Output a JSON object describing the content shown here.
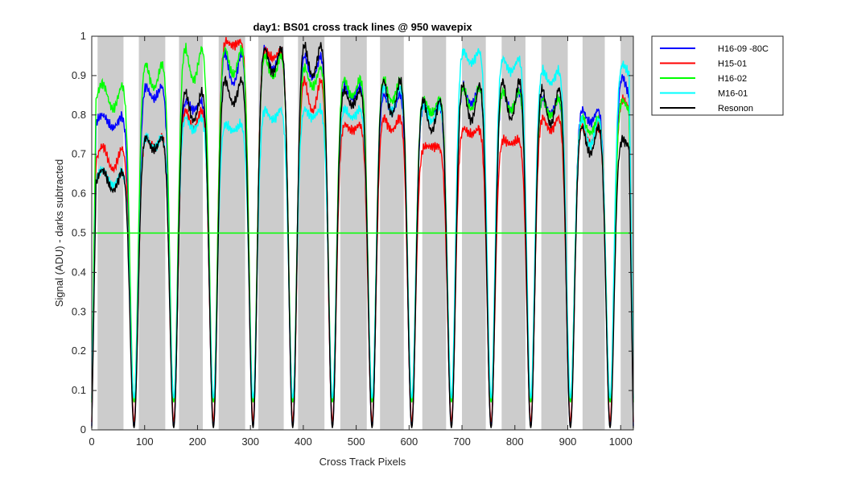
{
  "chart_data": {
    "type": "line",
    "title": "day1: BS01  cross track lines @ 950 wavepix",
    "xlabel": "Cross Track Pixels",
    "ylabel": "Signal (ADU) - darks subtracted",
    "xlim": [
      0,
      1024
    ],
    "ylim": [
      0,
      1
    ],
    "xticks": [
      0,
      100,
      200,
      300,
      400,
      500,
      600,
      700,
      800,
      900,
      1000
    ],
    "yticks": [
      0,
      0.1,
      0.2,
      0.3,
      0.4,
      0.5,
      0.6,
      0.7,
      0.8,
      0.9,
      1
    ],
    "xtick_labels": [
      "0",
      "100",
      "200",
      "300",
      "400",
      "500",
      "600",
      "700",
      "800",
      "900",
      "1000"
    ],
    "ytick_labels": [
      "0",
      "0.1",
      "0.2",
      "0.3",
      "0.4",
      "0.5",
      "0.6",
      "0.7",
      "0.8",
      "0.9",
      "1"
    ],
    "legend_position": "outside-top-right",
    "grid": false,
    "shaded_bands": [
      [
        11,
        60
      ],
      [
        89,
        139
      ],
      [
        165,
        210
      ],
      [
        240,
        290
      ],
      [
        315,
        363
      ],
      [
        390,
        440
      ],
      [
        470,
        520
      ],
      [
        545,
        590
      ],
      [
        625,
        670
      ],
      [
        700,
        745
      ],
      [
        775,
        820
      ],
      [
        850,
        900
      ],
      [
        928,
        970
      ],
      [
        1000,
        1024
      ]
    ],
    "dip_centers": [
      80,
      155,
      230,
      305,
      380,
      455,
      530,
      605,
      680,
      755,
      830,
      905,
      980
    ],
    "reference_line": {
      "y": 0.5,
      "color": "#00ff00"
    },
    "series": [
      {
        "name": "H16-09 -80C",
        "color": "#0000ff",
        "peaks": [
          0.8,
          0.88,
          0.84,
          0.97,
          0.98,
          0.96,
          0.88,
          0.86,
          0.83,
          0.88,
          0.87,
          0.85,
          0.82,
          0.9
        ],
        "valleys": [
          0.75,
          0.82,
          0.8,
          0.83,
          0.88,
          0.86,
          0.82,
          0.78,
          0.79,
          0.8,
          0.78,
          0.78,
          0.76,
          0.8
        ],
        "floor": 0.01
      },
      {
        "name": "H15-01",
        "color": "#ff0000",
        "peaks": [
          0.72,
          0.75,
          0.82,
          0.99,
          0.97,
          0.9,
          0.78,
          0.8,
          0.72,
          0.77,
          0.74,
          0.8,
          0.78,
          0.84
        ],
        "valleys": [
          0.63,
          0.7,
          0.74,
          0.97,
          0.93,
          0.76,
          0.75,
          0.74,
          0.72,
          0.74,
          0.72,
          0.74,
          0.7,
          0.8
        ],
        "floor": 0.02
      },
      {
        "name": "H16-02",
        "color": "#00ff00",
        "peaks": [
          0.88,
          0.94,
          0.98,
          0.98,
          0.96,
          0.93,
          0.9,
          0.9,
          0.85,
          0.88,
          0.87,
          0.85,
          0.8,
          0.84
        ],
        "valleys": [
          0.78,
          0.83,
          0.84,
          0.86,
          0.86,
          0.84,
          0.82,
          0.8,
          0.78,
          0.78,
          0.78,
          0.77,
          0.73,
          0.78
        ],
        "floor": 0.07
      },
      {
        "name": "M16-01",
        "color": "#00ffff",
        "peaks": [
          0.66,
          0.75,
          0.8,
          0.78,
          0.82,
          0.82,
          0.82,
          0.88,
          0.83,
          0.97,
          0.95,
          0.92,
          0.8,
          0.93
        ],
        "valleys": [
          0.6,
          0.7,
          0.74,
          0.75,
          0.77,
          0.78,
          0.78,
          0.77,
          0.76,
          0.91,
          0.89,
          0.86,
          0.68,
          0.88
        ],
        "floor": 0.08
      },
      {
        "name": "Resonon",
        "color": "#000000",
        "peaks": [
          0.66,
          0.75,
          0.87,
          0.9,
          0.98,
          0.99,
          0.87,
          0.9,
          0.85,
          0.89,
          0.9,
          0.88,
          0.78,
          0.74
        ],
        "valleys": [
          0.58,
          0.69,
          0.74,
          0.79,
          0.87,
          0.85,
          0.8,
          0.75,
          0.71,
          0.73,
          0.73,
          0.72,
          0.66,
          0.7
        ],
        "floor": 0.005
      }
    ]
  }
}
